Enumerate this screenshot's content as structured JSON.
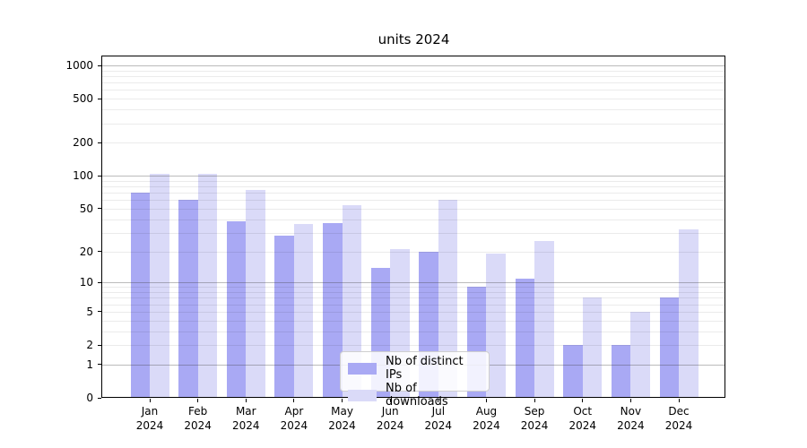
{
  "chart_data": {
    "type": "bar",
    "title": "units 2024",
    "categories": [
      "Jan",
      "Feb",
      "Mar",
      "Apr",
      "May",
      "Jun",
      "Jul",
      "Aug",
      "Sep",
      "Oct",
      "Nov",
      "Dec"
    ],
    "category_year": "2024",
    "series": [
      {
        "name": "Nb of distinct IPs",
        "color": "#a9a9f4",
        "values": [
          70,
          60,
          38,
          28,
          37,
          14,
          20,
          9,
          11,
          2,
          2,
          7
        ]
      },
      {
        "name": "Nb of downloads",
        "color": "#dadaf8",
        "values": [
          105,
          105,
          74,
          36,
          54,
          21,
          60,
          19,
          25,
          7,
          5,
          32
        ]
      }
    ],
    "y_ticks": [
      0,
      1,
      2,
      5,
      10,
      20,
      50,
      100,
      200,
      500,
      1000
    ],
    "scale": "log1p",
    "ylim": [
      0,
      1230
    ],
    "grid": true,
    "legend_position": "bottom-center",
    "colors": {
      "background": "#ffffff",
      "axis": "#000000",
      "major_grid": "#b4b4b4",
      "minor_grid": "#ebebeb"
    }
  }
}
